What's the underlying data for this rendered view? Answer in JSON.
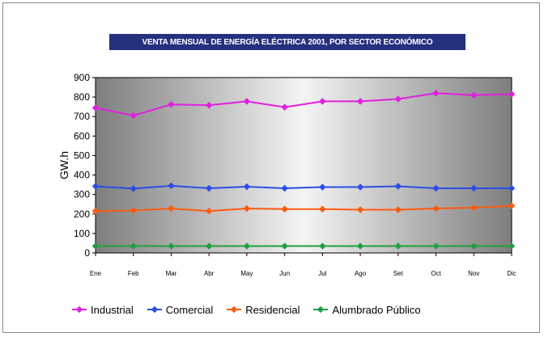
{
  "chart_data": {
    "type": "line",
    "title": "VENTA MENSUAL DE ENERGÍA ELÉCTRICA 2001, POR SECTOR ECONÓMICO",
    "xlabel": "",
    "ylabel": "GW.h",
    "ylim": [
      0,
      900
    ],
    "yticks": [
      "900",
      "800",
      "700",
      "600",
      "500",
      "400",
      "300",
      "200",
      "100",
      "0"
    ],
    "categories": [
      "Ene",
      "Feb",
      "Mar",
      "Abr",
      "May",
      "Jun",
      "Jul",
      "Ago",
      "Set",
      "Oct",
      "Nov",
      "Dic"
    ],
    "grid": false,
    "legend_position": "bottom",
    "series": [
      {
        "name": "Industrial",
        "color": "#e020e0",
        "values": [
          745,
          705,
          762,
          758,
          778,
          748,
          778,
          778,
          790,
          820,
          810,
          815
        ]
      },
      {
        "name": "Comercial",
        "color": "#2a4ee8",
        "values": [
          342,
          330,
          345,
          332,
          340,
          332,
          338,
          338,
          342,
          332,
          332,
          332
        ]
      },
      {
        "name": "Residencial",
        "color": "#ff5a10",
        "values": [
          215,
          218,
          228,
          215,
          228,
          225,
          225,
          222,
          222,
          228,
          232,
          242
        ]
      },
      {
        "name": "Alumbrado Público",
        "color": "#20a040",
        "values": [
          35,
          35,
          35,
          35,
          35,
          35,
          35,
          35,
          35,
          35,
          35,
          35
        ]
      }
    ]
  }
}
